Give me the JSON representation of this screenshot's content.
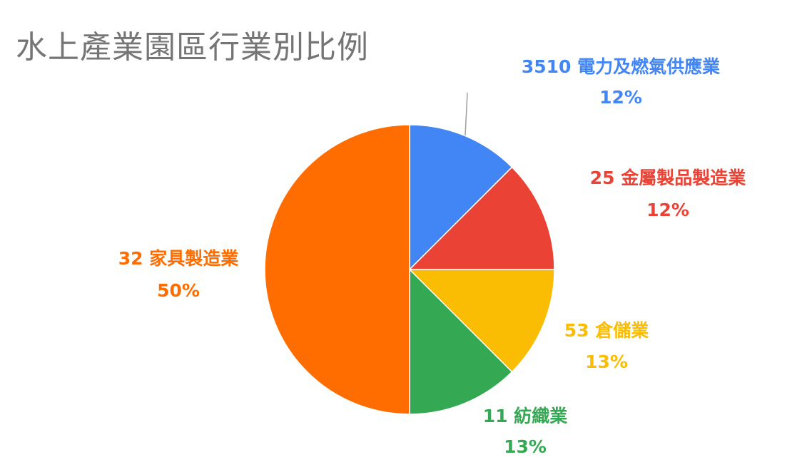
{
  "chart_data": {
    "type": "pie",
    "title": "水上產業園區行業別比例",
    "slices": [
      {
        "name": "3510 電力及燃氣供應業",
        "percent_label": "12%",
        "value": 12.5,
        "color": "#4285f4"
      },
      {
        "name": "25 金屬製品製造業",
        "percent_label": "12%",
        "value": 12.5,
        "color": "#ea4335"
      },
      {
        "name": "53 倉儲業",
        "percent_label": "13%",
        "value": 12.5,
        "color": "#fbbc04"
      },
      {
        "name": "11 紡織業",
        "percent_label": "13%",
        "value": 12.5,
        "color": "#34a853"
      },
      {
        "name": "32 家具製造業",
        "percent_label": "50%",
        "value": 50,
        "color": "#ff6d01"
      }
    ],
    "start_angle": "top",
    "direction": "clockwise",
    "legend": "none"
  }
}
